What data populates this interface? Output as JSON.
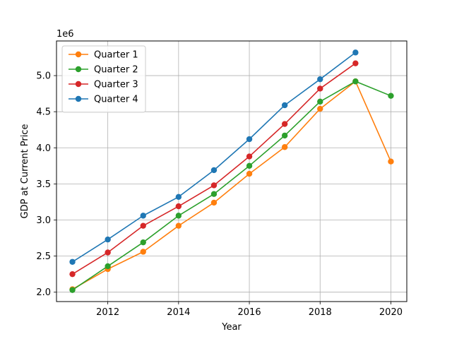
{
  "chart_data": {
    "type": "line",
    "title": "",
    "xlabel": "Year",
    "ylabel": "GDP at Current Price",
    "y_offset_label": "1e6",
    "xlim": [
      2010.55,
      2020.45
    ],
    "ylim": [
      1870000,
      5480000
    ],
    "xticks": [
      2012,
      2014,
      2016,
      2018,
      2020
    ],
    "yticks": [
      2000000,
      2500000,
      3000000,
      3500000,
      4000000,
      4500000,
      5000000
    ],
    "ytick_labels": [
      "2.0",
      "2.5",
      "3.0",
      "3.5",
      "4.0",
      "4.5",
      "5.0"
    ],
    "grid": true,
    "legend_position": "upper-left",
    "series": [
      {
        "name": "Quarter 1",
        "color": "#ff7f0e",
        "x": [
          2011,
          2012,
          2013,
          2014,
          2015,
          2016,
          2017,
          2018,
          2019,
          2020
        ],
        "values": [
          2040000,
          2320000,
          2560000,
          2920000,
          3240000,
          3640000,
          4010000,
          4540000,
          4920000,
          3810000
        ]
      },
      {
        "name": "Quarter 2",
        "color": "#2ca02c",
        "x": [
          2011,
          2012,
          2013,
          2014,
          2015,
          2016,
          2017,
          2018,
          2019,
          2020
        ],
        "values": [
          2030000,
          2360000,
          2690000,
          3060000,
          3360000,
          3750000,
          4170000,
          4640000,
          4920000,
          4720000
        ]
      },
      {
        "name": "Quarter 3",
        "color": "#d62728",
        "x": [
          2011,
          2012,
          2013,
          2014,
          2015,
          2016,
          2017,
          2018,
          2019
        ],
        "values": [
          2250000,
          2550000,
          2920000,
          3190000,
          3480000,
          3880000,
          4330000,
          4820000,
          5170000
        ]
      },
      {
        "name": "Quarter 4",
        "color": "#1f77b4",
        "x": [
          2011,
          2012,
          2013,
          2014,
          2015,
          2016,
          2017,
          2018,
          2019
        ],
        "values": [
          2420000,
          2730000,
          3060000,
          3320000,
          3690000,
          4120000,
          4590000,
          4950000,
          5320000
        ]
      }
    ]
  }
}
